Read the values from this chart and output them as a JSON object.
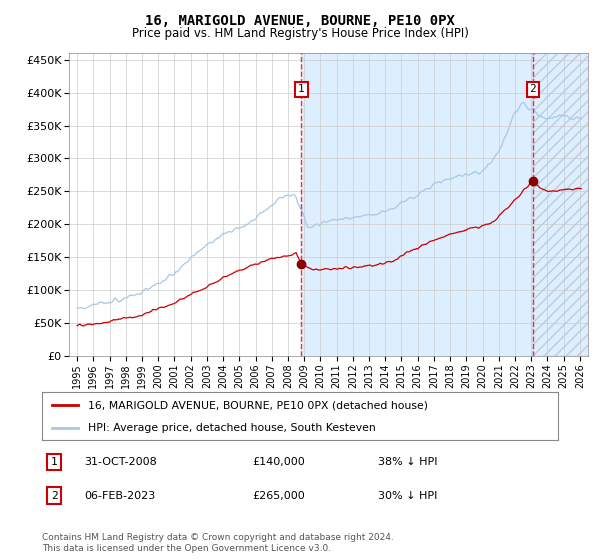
{
  "title": "16, MARIGOLD AVENUE, BOURNE, PE10 0PX",
  "subtitle": "Price paid vs. HM Land Registry's House Price Index (HPI)",
  "legend_line1": "16, MARIGOLD AVENUE, BOURNE, PE10 0PX (detached house)",
  "legend_line2": "HPI: Average price, detached house, South Kesteven",
  "annotation1_date": "31-OCT-2008",
  "annotation1_price": "£140,000",
  "annotation1_hpi": "38% ↓ HPI",
  "annotation2_date": "06-FEB-2023",
  "annotation2_price": "£265,000",
  "annotation2_hpi": "30% ↓ HPI",
  "footer": "Contains HM Land Registry data © Crown copyright and database right 2024.\nThis data is licensed under the Open Government Licence v3.0.",
  "vline1_year": 2008.83,
  "vline2_year": 2023.09,
  "dot1_year": 2008.83,
  "dot1_value": 140000,
  "dot2_year": 2023.09,
  "dot2_value": 265000,
  "hpi_color": "#a8c8e8",
  "price_color": "#cc0000",
  "vline_color": "#ff0000",
  "bg_fill_color": "#ddeeff",
  "ylim": [
    0,
    460000
  ],
  "xlim_start": 1994.5,
  "xlim_end": 2026.5,
  "hatch_start": 2023.09,
  "hatch_end": 2026.5,
  "yticks": [
    0,
    50000,
    100000,
    150000,
    200000,
    250000,
    300000,
    350000,
    400000,
    450000
  ],
  "ytick_labels": [
    "£0",
    "£50K",
    "£100K",
    "£150K",
    "£200K",
    "£250K",
    "£300K",
    "£350K",
    "£400K",
    "£450K"
  ]
}
